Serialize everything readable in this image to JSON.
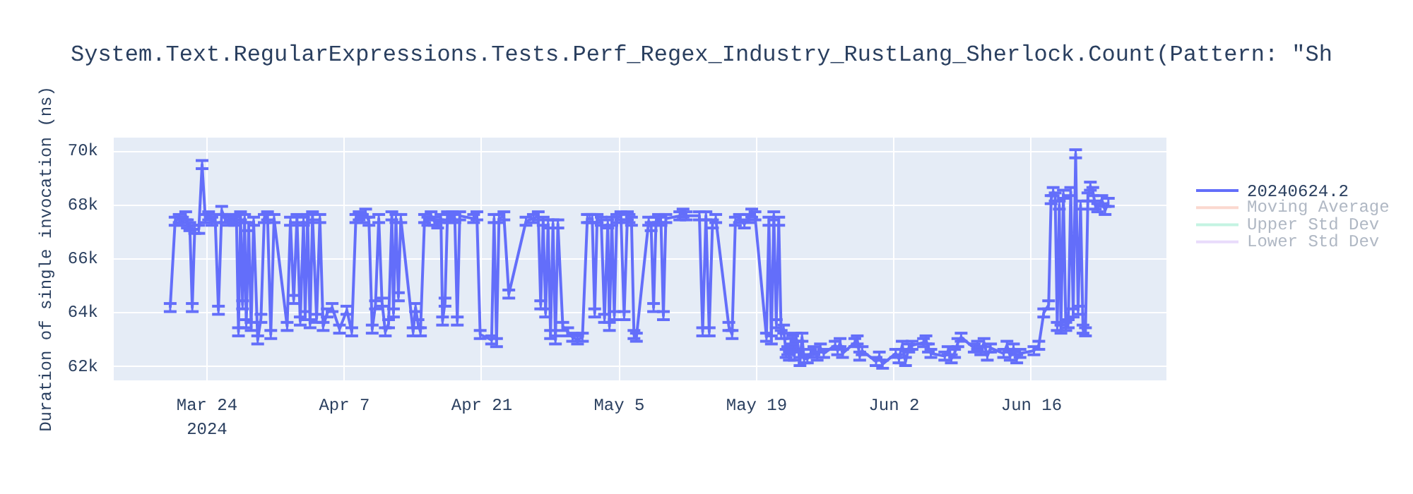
{
  "chart_data": {
    "type": "line",
    "title": "System.Text.RegularExpressions.Tests.Perf_Regex_Industry_RustLang_Sherlock.Count(Pattern: \"Sh",
    "ylabel": "Duration of single invocation (ns)",
    "xlim": [
      "2024-03-14T12:00",
      "2024-06-29T18:00"
    ],
    "xticks": [
      {
        "value": "2024-03-24",
        "label": "Mar 24\n2024"
      },
      {
        "value": "2024-04-07",
        "label": "Apr 7"
      },
      {
        "value": "2024-04-21",
        "label": "Apr 21"
      },
      {
        "value": "2024-05-05",
        "label": "May 5"
      },
      {
        "value": "2024-05-19",
        "label": "May 19"
      },
      {
        "value": "2024-06-02",
        "label": "Jun 2"
      },
      {
        "value": "2024-06-16",
        "label": "Jun 16"
      }
    ],
    "ylim": [
      61500,
      70500
    ],
    "yticks": [
      {
        "value": 62000,
        "label": "62k"
      },
      {
        "value": 64000,
        "label": "64k"
      },
      {
        "value": 66000,
        "label": "66k"
      },
      {
        "value": 68000,
        "label": "68k"
      },
      {
        "value": 70000,
        "label": "70k"
      }
    ],
    "grid": true,
    "legend": "right",
    "marker": "none",
    "line_style": "solid",
    "series": [
      {
        "name": "20240624.2",
        "color": "#636efa",
        "x": [
          "2024-03-20T06:00",
          "2024-03-20T18:00",
          "2024-03-21T04:00",
          "2024-03-21T12:00",
          "2024-03-21T20:00",
          "2024-03-22T00:00",
          "2024-03-22T06:00",
          "2024-03-22T12:00",
          "2024-03-22T18:00",
          "2024-03-23T04:00",
          "2024-03-23T12:00",
          "2024-03-23T20:00",
          "2024-03-24T04:00",
          "2024-03-24T12:00",
          "2024-03-24T20:00",
          "2024-03-25T04:00",
          "2024-03-25T12:00",
          "2024-03-25T20:00",
          "2024-03-26T04:00",
          "2024-03-26T12:00",
          "2024-03-26T20:00",
          "2024-03-27T00:00",
          "2024-03-27T05:00",
          "2024-03-27T10:00",
          "2024-03-27T15:00",
          "2024-03-27T20:00",
          "2024-03-28T00:00",
          "2024-03-28T06:00",
          "2024-03-28T12:00",
          "2024-03-28T18:00",
          "2024-03-29T04:00",
          "2024-03-29T12:00",
          "2024-03-29T20:00",
          "2024-03-30T04:00",
          "2024-03-30T12:00",
          "2024-03-30T20:00",
          "2024-04-01T04:00",
          "2024-04-01T12:00",
          "2024-04-01T20:00",
          "2024-04-02T04:00",
          "2024-04-02T12:00",
          "2024-04-02T20:00",
          "2024-04-03T00:00",
          "2024-04-03T06:00",
          "2024-04-03T12:00",
          "2024-04-03T18:00",
          "2024-04-04T04:00",
          "2024-04-04T12:00",
          "2024-04-04T20:00",
          "2024-04-05T06:00",
          "2024-04-05T18:00",
          "2024-04-06T12:00",
          "2024-04-07T06:00",
          "2024-04-07T18:00",
          "2024-04-08T04:00",
          "2024-04-08T12:00",
          "2024-04-08T20:00",
          "2024-04-09T04:00",
          "2024-04-09T12:00",
          "2024-04-09T20:00",
          "2024-04-10T04:00",
          "2024-04-10T12:00",
          "2024-04-10T20:00",
          "2024-04-11T04:00",
          "2024-04-11T12:00",
          "2024-04-11T20:00",
          "2024-04-12T00:00",
          "2024-04-12T06:00",
          "2024-04-12T12:00",
          "2024-04-12T18:00",
          "2024-04-14T00:00",
          "2024-04-14T06:00",
          "2024-04-14T12:00",
          "2024-04-14T18:00",
          "2024-04-15T04:00",
          "2024-04-15T12:00",
          "2024-04-15T20:00",
          "2024-04-16T04:00",
          "2024-04-16T12:00",
          "2024-04-16T20:00",
          "2024-04-17T00:00",
          "2024-04-17T06:00",
          "2024-04-17T12:00",
          "2024-04-17T18:00",
          "2024-04-18T00:00",
          "2024-04-18T06:00",
          "2024-04-18T12:00",
          "2024-04-18T18:00",
          "2024-04-20T04:00",
          "2024-04-20T12:00",
          "2024-04-20T20:00",
          "2024-04-22T00:00",
          "2024-04-22T06:00",
          "2024-04-22T12:00",
          "2024-04-22T18:00",
          "2024-04-23T06:00",
          "2024-04-23T18:00",
          "2024-04-25T12:00",
          "2024-04-26T06:00",
          "2024-04-26T18:00",
          "2024-04-27T00:00",
          "2024-04-27T06:00",
          "2024-04-27T12:00",
          "2024-04-27T18:00",
          "2024-04-28T00:00",
          "2024-04-28T06:00",
          "2024-04-28T12:00",
          "2024-04-28T18:00",
          "2024-04-29T06:00",
          "2024-04-29T18:00",
          "2024-04-30T06:00",
          "2024-04-30T18:00",
          "2024-05-01T06:00",
          "2024-05-01T18:00",
          "2024-05-02T00:00",
          "2024-05-02T06:00",
          "2024-05-02T12:00",
          "2024-05-02T18:00",
          "2024-05-03T04:00",
          "2024-05-03T12:00",
          "2024-05-03T20:00",
          "2024-05-04T00:00",
          "2024-05-04T06:00",
          "2024-05-04T12:00",
          "2024-05-04T18:00",
          "2024-05-05T04:00",
          "2024-05-05T12:00",
          "2024-05-05T20:00",
          "2024-05-06T00:00",
          "2024-05-06T06:00",
          "2024-05-06T12:00",
          "2024-05-06T18:00",
          "2024-05-08T00:00",
          "2024-05-08T06:00",
          "2024-05-08T12:00",
          "2024-05-08T18:00",
          "2024-05-09T00:00",
          "2024-05-09T06:00",
          "2024-05-09T12:00",
          "2024-05-09T18:00",
          "2024-05-11T04:00",
          "2024-05-11T12:00",
          "2024-05-11T20:00",
          "2024-05-13T04:00",
          "2024-05-13T12:00",
          "2024-05-13T20:00",
          "2024-05-14T04:00",
          "2024-05-14T12:00",
          "2024-05-14T20:00",
          "2024-05-16T04:00",
          "2024-05-16T12:00",
          "2024-05-16T20:00",
          "2024-05-17T06:00",
          "2024-05-17T18:00",
          "2024-05-18T04:00",
          "2024-05-18T12:00",
          "2024-05-18T20:00",
          "2024-05-20T00:00",
          "2024-05-20T06:00",
          "2024-05-20T12:00",
          "2024-05-20T18:00",
          "2024-05-21T00:00",
          "2024-05-21T06:00",
          "2024-05-21T12:00",
          "2024-05-21T18:00",
          "2024-05-22T00:00",
          "2024-05-22T04:00",
          "2024-05-22T08:00",
          "2024-05-22T12:00",
          "2024-05-22T16:00",
          "2024-05-22T20:00",
          "2024-05-23T00:00",
          "2024-05-23T05:00",
          "2024-05-23T10:00",
          "2024-05-23T15:00",
          "2024-05-23T20:00",
          "2024-05-24T04:00",
          "2024-05-24T12:00",
          "2024-05-24T20:00",
          "2024-05-25T04:00",
          "2024-05-25T12:00",
          "2024-05-25T20:00",
          "2024-05-27T00:00",
          "2024-05-27T06:00",
          "2024-05-27T12:00",
          "2024-05-27T18:00",
          "2024-05-29T00:00",
          "2024-05-29T06:00",
          "2024-05-29T12:00",
          "2024-05-29T18:00",
          "2024-05-31T04:00",
          "2024-05-31T12:00",
          "2024-05-31T20:00",
          "2024-06-02T04:00",
          "2024-06-02T12:00",
          "2024-06-02T20:00",
          "2024-06-03T04:00",
          "2024-06-03T12:00",
          "2024-06-03T20:00",
          "2024-06-05T00:00",
          "2024-06-05T06:00",
          "2024-06-05T12:00",
          "2024-06-05T18:00",
          "2024-06-07T04:00",
          "2024-06-07T12:00",
          "2024-06-07T20:00",
          "2024-06-08T04:00",
          "2024-06-08T12:00",
          "2024-06-08T20:00",
          "2024-06-10T04:00",
          "2024-06-10T12:00",
          "2024-06-10T20:00",
          "2024-06-11T04:00",
          "2024-06-11T12:00",
          "2024-06-11T20:00",
          "2024-06-13T04:00",
          "2024-06-13T12:00",
          "2024-06-13T20:00",
          "2024-06-14T04:00",
          "2024-06-14T12:00",
          "2024-06-14T20:00",
          "2024-06-16T06:00",
          "2024-06-16T18:00",
          "2024-06-17T06:00",
          "2024-06-17T18:00",
          "2024-06-18T00:00",
          "2024-06-18T05:00",
          "2024-06-18T10:00",
          "2024-06-18T15:00",
          "2024-06-18T20:00",
          "2024-06-19T00:00",
          "2024-06-19T06:00",
          "2024-06-19T12:00",
          "2024-06-19T18:00",
          "2024-06-20T00:00",
          "2024-06-20T06:00",
          "2024-06-20T12:00",
          "2024-06-20T18:00",
          "2024-06-21T00:00",
          "2024-06-21T06:00",
          "2024-06-21T12:00",
          "2024-06-21T18:00",
          "2024-06-22T00:00",
          "2024-06-22T06:00",
          "2024-06-22T12:00",
          "2024-06-22T18:00",
          "2024-06-23T04:00",
          "2024-06-23T12:00",
          "2024-06-23T20:00"
        ],
        "values": [
          64200,
          67400,
          67500,
          67400,
          67600,
          67300,
          67200,
          64200,
          67100,
          67100,
          69500,
          67500,
          67600,
          67400,
          67500,
          64100,
          67800,
          67500,
          67400,
          67500,
          67400,
          67500,
          63300,
          67600,
          64300,
          67500,
          63600,
          67200,
          63500,
          67400,
          63000,
          63800,
          67500,
          67600,
          63200,
          67500,
          63500,
          67400,
          64500,
          67500,
          63700,
          67400,
          63900,
          67500,
          63600,
          67600,
          63800,
          67500,
          63500,
          64000,
          64200,
          63400,
          64100,
          63300,
          67500,
          67600,
          67500,
          67700,
          67400,
          63400,
          64300,
          67500,
          64400,
          63300,
          63600,
          67600,
          64000,
          67500,
          64600,
          67500,
          63300,
          64200,
          63600,
          63300,
          67500,
          67400,
          67600,
          67400,
          67300,
          67500,
          63700,
          64400,
          67600,
          67500,
          67600,
          67500,
          63700,
          67600,
          67500,
          67600,
          63200,
          63000,
          67500,
          62900,
          67500,
          67600,
          64700,
          67400,
          67500,
          67600,
          64300,
          67400,
          64000,
          67300,
          63200,
          67300,
          63000,
          67300,
          63500,
          63300,
          63100,
          63000,
          63100,
          67500,
          67500,
          67500,
          64000,
          67500,
          67400,
          63800,
          67300,
          63500,
          67400,
          63900,
          67500,
          67600,
          63900,
          67600,
          67500,
          67400,
          63200,
          63100,
          67400,
          67200,
          64200,
          67400,
          67500,
          67400,
          63900,
          67500,
          67600,
          67700,
          67600,
          67600,
          63300,
          67600,
          63300,
          67300,
          67500,
          63500,
          63200,
          67400,
          67500,
          67300,
          67500,
          67700,
          67600,
          63100,
          67400,
          63000,
          67600,
          63600,
          67400,
          63200,
          63400,
          62500,
          62600,
          62400,
          62900,
          63000,
          62400,
          63100,
          62800,
          62200,
          63100,
          62300,
          62300,
          62500,
          62600,
          62400,
          62700,
          62500,
          62800,
          62600,
          62900,
          62500,
          62900,
          63000,
          62400,
          62600,
          62200,
          62400,
          62100,
          62500,
          62300,
          62800,
          62200,
          62700,
          62800,
          62900,
          63000,
          62700,
          62500,
          62400,
          62600,
          62300,
          62500,
          62900,
          63100,
          62700,
          62800,
          62600,
          62900,
          62400,
          62700,
          62500,
          62800,
          62400,
          62700,
          62300,
          62500,
          62600,
          62800,
          64000,
          64300,
          68200,
          68500,
          68300,
          63500,
          68000,
          63400,
          68400,
          63500,
          63600,
          68500,
          64000,
          69900,
          64100,
          68000,
          63400,
          63300,
          68300,
          68700,
          68500,
          68000,
          67900,
          68200,
          67800,
          68100
        ],
        "errors": [
          150,
          150,
          150,
          150,
          150,
          150,
          150,
          150,
          150,
          150,
          150,
          150,
          150,
          150,
          150,
          150,
          150,
          150,
          150,
          150,
          150,
          150,
          150,
          150,
          150,
          150,
          150,
          150,
          150,
          150,
          150,
          150,
          150,
          150,
          150,
          150,
          150,
          150,
          150,
          150,
          150,
          150,
          150,
          150,
          150,
          150,
          150,
          150,
          150,
          150,
          150,
          150,
          150,
          150,
          150,
          150,
          150,
          150,
          150,
          150,
          150,
          150,
          150,
          150,
          150,
          150,
          150,
          150,
          150,
          150,
          150,
          150,
          150,
          150,
          150,
          150,
          150,
          150,
          150,
          150,
          150,
          150,
          150,
          150,
          150,
          150,
          150,
          150,
          150,
          150,
          150,
          150,
          150,
          150,
          150,
          150,
          150,
          150,
          150,
          150,
          150,
          150,
          150,
          150,
          150,
          150,
          150,
          150,
          150,
          150,
          150,
          150,
          150,
          150,
          150,
          150,
          150,
          150,
          150,
          150,
          150,
          150,
          150,
          150,
          150,
          150,
          150,
          150,
          150,
          150,
          150,
          150,
          150,
          150,
          150,
          150,
          150,
          150,
          150,
          150,
          150,
          150,
          150,
          150,
          150,
          150,
          150,
          150,
          150,
          150,
          150,
          150,
          150,
          150,
          150,
          150,
          150,
          150,
          150,
          150,
          150,
          150,
          150,
          150,
          150,
          150,
          150,
          150,
          150,
          150,
          150,
          150,
          150,
          150,
          150,
          150,
          150,
          150,
          150,
          150,
          150,
          150,
          150,
          150,
          150,
          150,
          150,
          150,
          150,
          150,
          150,
          150,
          150,
          150,
          150,
          150,
          150,
          150,
          150,
          150,
          150,
          150,
          150,
          150,
          150,
          150,
          150,
          150,
          150,
          150,
          150,
          150,
          150,
          150,
          150,
          150,
          150,
          150,
          150,
          150,
          150,
          150,
          150,
          150,
          150,
          150,
          150,
          150,
          150,
          150,
          150,
          150,
          150,
          150,
          150,
          150,
          150,
          150,
          150,
          150,
          150,
          150,
          150,
          150,
          150,
          150,
          150,
          150,
          150
        ]
      },
      {
        "name": "Moving Average",
        "color": "#f8b2a0"
      },
      {
        "name": "Upper Std Dev",
        "color": "#8ae8c5"
      },
      {
        "name": "Lower Std Dev",
        "color": "#d4b9f8"
      }
    ]
  }
}
